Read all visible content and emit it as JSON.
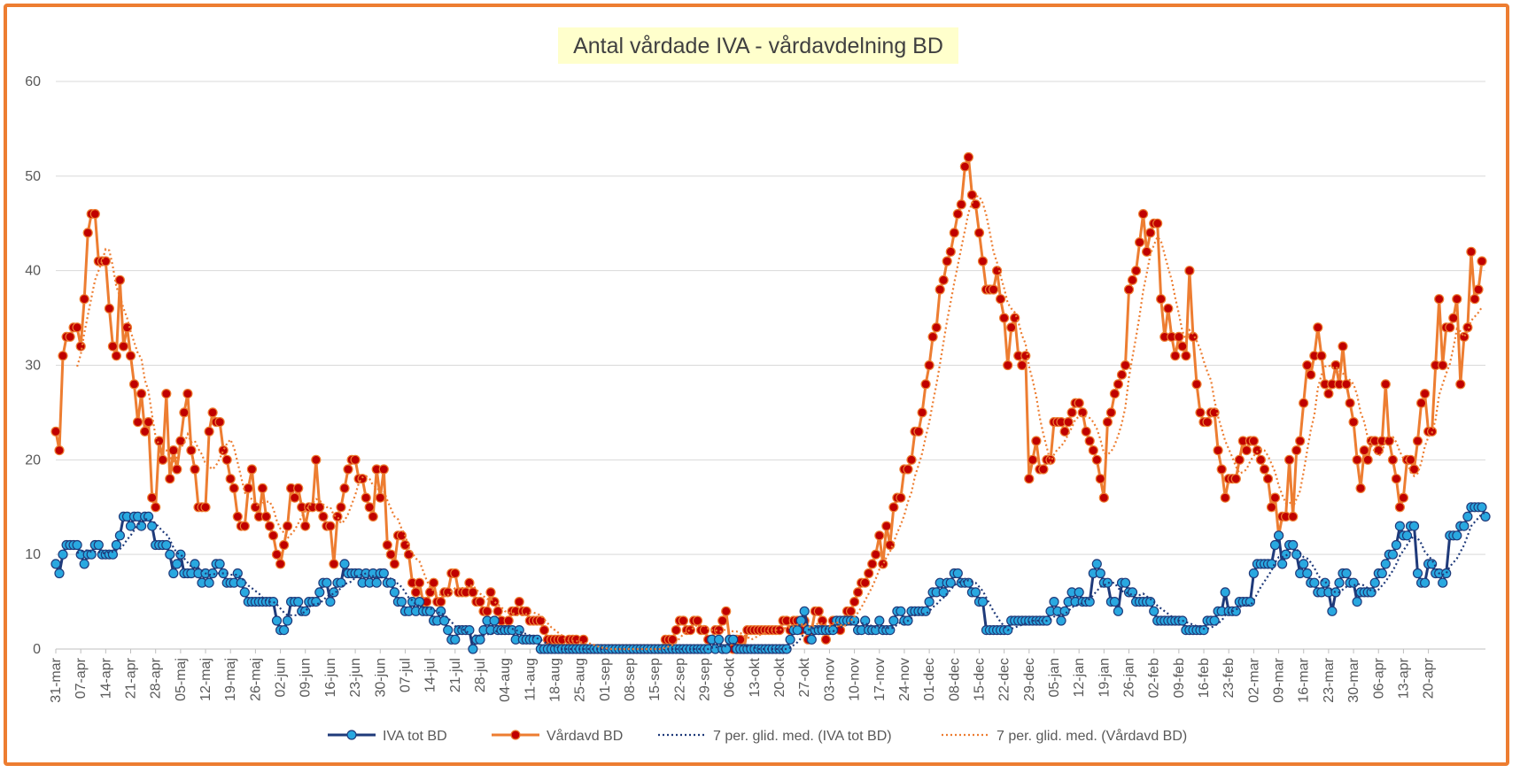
{
  "chart_data": {
    "type": "line",
    "title": "Antal vårdade IVA - vårdavdelning BD",
    "ylim": [
      0,
      60
    ],
    "yticks": [
      0,
      10,
      20,
      30,
      40,
      50,
      60
    ],
    "xtick_labels": [
      "31-mar",
      "07-apr",
      "14-apr",
      "21-apr",
      "28-apr",
      "05-maj",
      "12-maj",
      "19-maj",
      "26-maj",
      "02-jun",
      "09-jun",
      "16-jun",
      "23-jun",
      "30-jun",
      "07-jul",
      "14-jul",
      "21-jul",
      "28-jul",
      "04-aug",
      "11-aug",
      "18-aug",
      "25-aug",
      "01-sep",
      "08-sep",
      "15-sep",
      "22-sep",
      "29-sep",
      "06-okt",
      "13-okt",
      "20-okt",
      "27-okt",
      "03-nov",
      "10-nov",
      "17-nov",
      "24-nov",
      "01-dec",
      "08-dec",
      "15-dec",
      "22-dec",
      "29-dec",
      "05-jan",
      "12-jan",
      "19-jan",
      "26-jan",
      "02-feb",
      "09-feb",
      "16-feb",
      "23-feb",
      "02-mar",
      "09-mar",
      "16-mar",
      "23-mar",
      "30-mar",
      "06-apr",
      "13-apr",
      "20-apr"
    ],
    "x_range": [
      "31-mar",
      "19-apr"
    ],
    "grid": true,
    "legend_position": "bottom",
    "series": [
      {
        "name": "IVA tot BD",
        "color": "#1F3A7A",
        "marker_fill": "#29A8E0",
        "values": [
          9,
          8,
          10,
          11,
          11,
          11,
          11,
          10,
          9,
          10,
          10,
          11,
          11,
          10,
          10,
          10,
          10,
          11,
          12,
          14,
          14,
          13,
          14,
          14,
          13,
          14,
          14,
          13,
          11,
          11,
          11,
          11,
          10,
          8,
          9,
          10,
          8,
          8,
          8,
          9,
          8,
          7,
          8,
          7,
          8,
          9,
          9,
          8,
          7,
          7,
          7,
          8,
          7,
          6,
          5,
          5,
          5,
          5,
          5,
          5,
          5,
          5,
          3,
          2,
          2,
          3,
          5,
          5,
          5,
          4,
          4,
          5,
          5,
          5,
          6,
          7,
          7,
          5,
          6,
          7,
          7,
          9,
          8,
          8,
          8,
          8,
          7,
          8,
          7,
          8,
          7,
          8,
          8,
          7,
          7,
          6,
          5,
          5,
          4,
          4,
          5,
          4,
          5,
          4,
          4,
          4,
          3,
          3,
          4,
          3,
          2,
          1,
          1,
          2,
          2,
          2,
          2,
          0,
          1,
          1,
          2,
          3,
          2,
          3,
          2,
          2,
          2,
          2,
          2,
          1,
          2,
          1,
          1,
          1,
          1,
          1,
          0,
          0,
          0,
          0,
          0,
          0,
          0,
          0,
          0,
          0,
          0,
          0,
          0,
          0,
          0,
          0,
          0,
          0,
          0,
          0,
          0,
          0,
          0,
          0,
          0,
          0,
          0,
          0,
          0,
          0,
          0,
          0,
          0,
          0,
          0,
          0,
          0,
          0,
          0,
          0,
          0,
          0,
          0,
          0,
          0,
          0,
          0,
          0,
          1,
          0,
          1,
          0,
          0,
          1,
          1,
          0,
          0,
          0,
          0,
          0,
          0,
          0,
          0,
          0,
          0,
          0,
          0,
          0,
          0,
          0,
          1,
          2,
          2,
          3,
          4,
          2,
          1,
          2,
          2,
          2,
          2,
          2,
          2,
          3,
          3,
          3,
          3,
          3,
          3,
          2,
          2,
          3,
          2,
          2,
          2,
          3,
          2,
          2,
          2,
          3,
          4,
          4,
          3,
          3,
          4,
          4,
          4,
          4,
          4,
          5,
          6,
          6,
          7,
          6,
          7,
          7,
          8,
          8,
          7,
          7,
          7,
          6,
          6,
          5,
          5,
          2,
          2,
          2,
          2,
          2,
          2,
          2,
          3,
          3,
          3,
          3,
          3,
          3,
          3,
          3,
          3,
          3,
          3,
          4,
          5,
          4,
          3,
          4,
          5,
          6,
          5,
          6,
          5,
          5,
          5,
          8,
          9,
          8,
          7,
          7,
          5,
          5,
          4,
          7,
          7,
          6,
          6,
          5,
          5,
          5,
          5,
          5,
          4,
          3,
          3,
          3,
          3,
          3,
          3,
          3,
          3,
          2,
          2,
          2,
          2,
          2,
          2,
          3,
          3,
          3,
          4,
          4,
          6,
          4,
          4,
          4,
          5,
          5,
          5,
          5,
          8,
          9,
          9,
          9,
          9,
          9,
          11,
          12,
          9,
          10,
          11,
          11,
          10,
          8,
          9,
          8,
          7,
          7,
          6,
          6,
          7,
          6,
          4,
          6,
          7,
          8,
          8,
          7,
          7,
          5,
          6,
          6,
          6,
          6,
          7,
          8,
          8,
          9,
          10,
          10,
          11,
          13,
          12,
          12,
          13,
          13,
          8,
          7,
          7,
          9,
          9,
          8,
          8,
          7,
          8,
          12,
          12,
          12,
          13,
          13,
          14,
          15,
          15,
          15,
          15,
          14
        ]
      },
      {
        "name": "Vårdavd BD",
        "color": "#ED7D31",
        "marker_fill": "#C00000",
        "values": [
          23,
          21,
          31,
          33,
          33,
          34,
          34,
          32,
          37,
          44,
          46,
          46,
          41,
          41,
          41,
          36,
          32,
          31,
          39,
          32,
          34,
          31,
          28,
          24,
          27,
          23,
          24,
          16,
          15,
          22,
          20,
          27,
          18,
          21,
          19,
          22,
          25,
          27,
          21,
          19,
          15,
          15,
          15,
          23,
          25,
          24,
          24,
          21,
          20,
          18,
          17,
          14,
          13,
          13,
          17,
          19,
          15,
          14,
          17,
          14,
          13,
          12,
          10,
          9,
          11,
          13,
          17,
          16,
          17,
          15,
          13,
          15,
          15,
          20,
          15,
          14,
          13,
          13,
          9,
          14,
          15,
          17,
          19,
          20,
          20,
          18,
          18,
          16,
          15,
          14,
          19,
          16,
          19,
          11,
          10,
          9,
          12,
          12,
          11,
          10,
          7,
          6,
          7,
          5,
          5,
          6,
          7,
          5,
          5,
          6,
          6,
          8,
          8,
          6,
          6,
          6,
          7,
          6,
          5,
          5,
          4,
          4,
          6,
          5,
          4,
          3,
          2,
          3,
          4,
          4,
          5,
          4,
          4,
          3,
          3,
          3,
          3,
          2,
          1,
          1,
          1,
          1,
          1,
          0,
          1,
          1,
          1,
          0,
          1,
          0,
          0,
          0,
          0,
          0,
          0,
          0,
          0,
          0,
          0,
          0,
          0,
          0,
          0,
          0,
          0,
          0,
          0,
          0,
          0,
          0,
          0,
          1,
          1,
          1,
          2,
          3,
          3,
          2,
          2,
          3,
          3,
          2,
          2,
          1,
          1,
          2,
          2,
          3,
          4,
          1,
          0,
          1,
          1,
          0,
          2,
          2,
          2,
          2,
          2,
          2,
          2,
          2,
          2,
          2,
          3,
          3,
          2,
          3,
          3,
          2,
          3,
          1,
          2,
          4,
          4,
          3,
          1,
          2,
          3,
          3,
          2,
          3,
          4,
          4,
          5,
          6,
          7,
          7,
          8,
          9,
          10,
          12,
          9,
          13,
          11,
          15,
          16,
          16,
          19,
          19,
          20,
          23,
          23,
          25,
          28,
          30,
          33,
          34,
          38,
          39,
          41,
          42,
          44,
          46,
          47,
          51,
          52,
          48,
          47,
          44,
          41,
          38,
          38,
          38,
          40,
          37,
          35,
          30,
          34,
          35,
          31,
          30,
          31,
          18,
          20,
          22,
          19,
          19,
          20,
          20,
          24,
          24,
          24,
          23,
          24,
          25,
          26,
          26,
          25,
          23,
          22,
          21,
          20,
          18,
          16,
          24,
          25,
          27,
          28,
          29,
          30,
          38,
          39,
          40,
          43,
          46,
          42,
          44,
          45,
          45,
          37,
          33,
          36,
          33,
          31,
          33,
          32,
          31,
          40,
          33,
          28,
          25,
          24,
          24,
          25,
          25,
          21,
          19,
          16,
          18,
          18,
          18,
          20,
          22,
          21,
          22,
          22,
          21,
          20,
          19,
          18,
          15,
          16,
          12,
          14,
          14,
          20,
          14,
          21,
          22,
          26,
          30,
          29,
          31,
          34,
          31,
          28,
          27,
          28,
          30,
          28,
          32,
          28,
          26,
          24,
          20,
          17,
          21,
          20,
          22,
          22,
          21,
          22,
          28,
          22,
          20,
          18,
          15,
          16,
          20,
          20,
          19,
          22,
          26,
          27,
          23,
          23,
          30,
          37,
          30,
          34,
          34,
          35,
          37,
          28,
          33,
          34,
          42,
          37,
          38,
          41
        ]
      },
      {
        "name": "7 per. glid. med. (IVA tot BD)",
        "type": "moving_average",
        "period": 7,
        "of": "IVA tot BD",
        "color": "#1F3A7A"
      },
      {
        "name": "7 per. glid. med. (Vårdavd BD)",
        "type": "moving_average",
        "period": 7,
        "of": "Vårdavd BD",
        "color": "#ED7D31"
      }
    ]
  }
}
